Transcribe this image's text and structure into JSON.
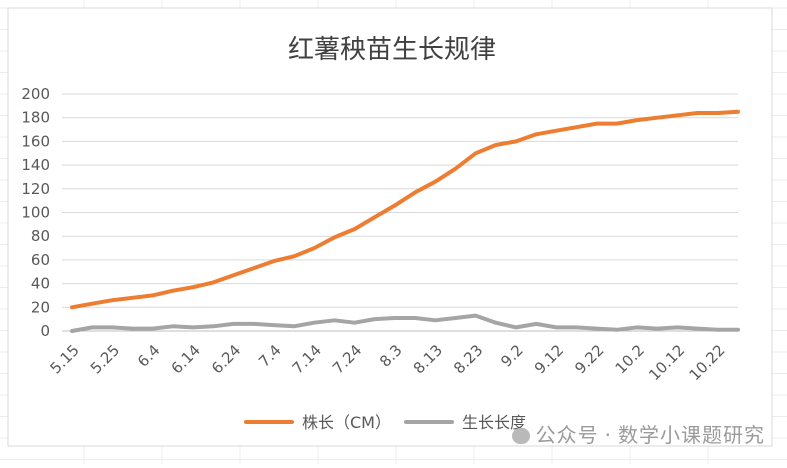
{
  "chart_data": {
    "type": "line",
    "title": "红薯秧苗生长规律",
    "ylim": [
      0,
      200
    ],
    "y_ticks": [
      0,
      20,
      40,
      60,
      80,
      100,
      120,
      140,
      160,
      180,
      200
    ],
    "x_tick_labels": [
      "5.15",
      "5.25",
      "6.4",
      "6.14",
      "6.24",
      "7.4",
      "7.14",
      "7.24",
      "8.3",
      "8.13",
      "8.23",
      "9.2",
      "9.12",
      "9.22",
      "10.2",
      "10.12",
      "10.22"
    ],
    "x": [
      "5.15",
      "5.20",
      "5.25",
      "5.30",
      "6.4",
      "6.9",
      "6.14",
      "6.19",
      "6.24",
      "6.29",
      "7.4",
      "7.9",
      "7.14",
      "7.19",
      "7.24",
      "7.29",
      "8.3",
      "8.8",
      "8.13",
      "8.18",
      "8.23",
      "8.28",
      "9.2",
      "9.7",
      "9.12",
      "9.17",
      "9.22",
      "9.27",
      "10.2",
      "10.7",
      "10.12",
      "10.17",
      "10.22",
      "10.25"
    ],
    "series": [
      {
        "name": "株长（CM）",
        "color": "#ED7D31",
        "values": [
          20,
          23,
          26,
          28,
          30,
          34,
          37,
          41,
          47,
          53,
          59,
          63,
          70,
          79,
          86,
          96,
          106,
          117,
          126,
          137,
          150,
          157,
          160,
          166,
          169,
          172,
          175,
          175,
          178,
          180,
          182,
          184,
          184,
          185
        ]
      },
      {
        "name": "生长长度",
        "color": "#A5A5A5",
        "values": [
          0,
          3,
          3,
          2,
          2,
          4,
          3,
          4,
          6,
          6,
          5,
          4,
          7,
          9,
          7,
          10,
          11,
          11,
          9,
          11,
          13,
          7,
          3,
          6,
          3,
          3,
          2,
          1,
          3,
          2,
          3,
          2,
          1,
          1
        ]
      }
    ],
    "grid": true,
    "legend": "bottom"
  },
  "watermark": {
    "prefix": "公众号",
    "separator": "·",
    "name": "数学小课题研究"
  }
}
